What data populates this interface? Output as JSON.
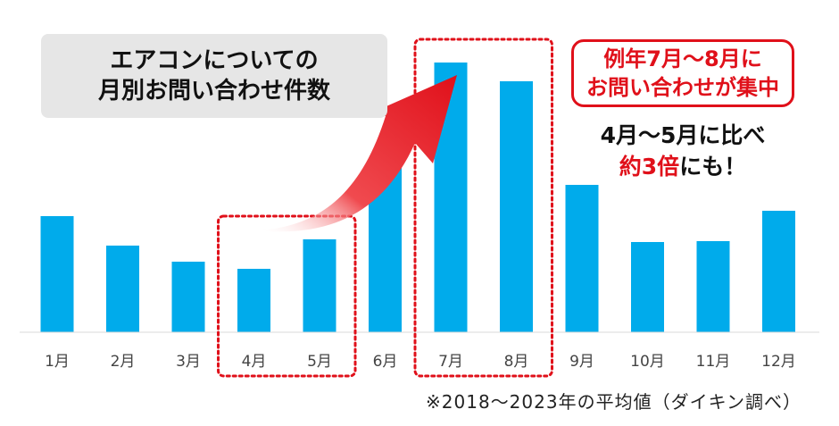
{
  "colors": {
    "bar": "#00abeb",
    "accent_red": "#e0101a",
    "title_bg": "#e6e6e6",
    "text": "#111111"
  },
  "title": {
    "line1": "エアコンについての",
    "line2": "月別お問い合わせ件数"
  },
  "callout": {
    "line1": "例年7月～8月に",
    "line2": "お問い合わせが集中"
  },
  "note": {
    "line1": "4月～5月に比べ",
    "line2_red": "約3倍",
    "line2_rest": "にも！"
  },
  "source": "※2018～2023年の平均値（ダイキン調べ）",
  "arrow_icon": "rising-arrow-icon",
  "chart_data": {
    "type": "bar",
    "title": "エアコンについての月別お問い合わせ件数",
    "xlabel": "",
    "ylabel": "",
    "categories": [
      "1月",
      "2月",
      "3月",
      "4月",
      "5月",
      "6月",
      "7月",
      "8月",
      "9月",
      "10月",
      "11月",
      "12月"
    ],
    "values": [
      130,
      97,
      79,
      71,
      104,
      195,
      302,
      281,
      165,
      101,
      102,
      136
    ],
    "ylim": [
      0,
      320
    ],
    "grid": false,
    "highlight_groups": [
      [
        "4月",
        "5月"
      ],
      [
        "7月",
        "8月"
      ]
    ]
  }
}
